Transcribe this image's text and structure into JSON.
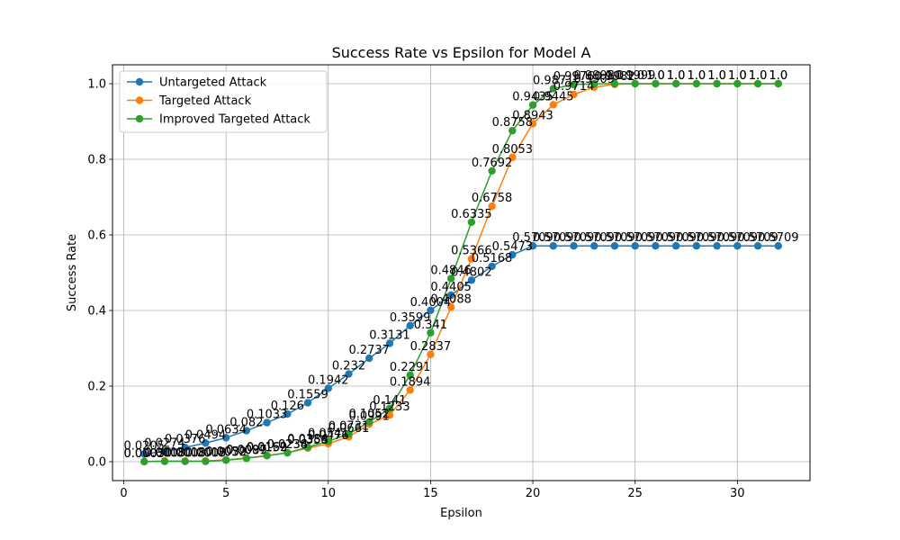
{
  "chart_data": {
    "type": "line",
    "title": "Success Rate vs Epsilon for Model A",
    "xlabel": "Epsilon",
    "ylabel": "Success Rate",
    "xlim": [
      -0.55,
      33.55
    ],
    "ylim": [
      -0.05,
      1.05
    ],
    "xticks": [
      0,
      5,
      10,
      15,
      20,
      25,
      30
    ],
    "yticks": [
      0.0,
      0.2,
      0.4,
      0.6,
      0.8,
      1.0
    ],
    "grid": true,
    "legend_position": "top-left",
    "x": [
      1,
      2,
      3,
      4,
      5,
      6,
      7,
      8,
      9,
      10,
      11,
      12,
      13,
      14,
      15,
      16,
      17,
      18,
      19,
      20,
      21,
      22,
      23,
      24,
      25,
      26,
      27,
      28,
      29,
      30,
      31,
      32
    ],
    "series": [
      {
        "name": "Untargeted Attack",
        "color": "#1f77b4",
        "values": [
          0.0205,
          0.0274,
          0.0376,
          0.0494,
          0.0634,
          0.082,
          0.1033,
          0.126,
          0.1559,
          0.1942,
          0.232,
          0.2737,
          0.3131,
          0.3599,
          0.4004,
          0.4405,
          0.4802,
          0.5168,
          0.5473,
          0.5709,
          0.5709,
          0.5709,
          0.5709,
          0.5709,
          0.5709,
          0.5709,
          0.5709,
          0.5709,
          0.5709,
          0.5709,
          0.5709,
          0.5709
        ],
        "labels": [
          "0.0205",
          "0.0274",
          "0.0376",
          "0.0494",
          "0.0634",
          "0.082",
          "0.1033",
          "0.126",
          "0.1559",
          "0.1942",
          "0.232",
          "0.2737",
          "0.3131",
          "0.3599",
          "0.4004",
          "0.4405",
          "0.4802",
          "0.5168",
          "0.5473",
          "0.5709",
          "0.5709",
          "0.5709",
          "0.5709",
          "0.5709",
          "0.5709",
          "0.5709",
          "0.5709",
          "0.5709",
          "0.5709",
          "0.5709",
          "0.5709",
          "0.5709"
        ]
      },
      {
        "name": "Targeted Attack",
        "color": "#ff7f0e",
        "values": [
          0.0005,
          0.0018,
          0.0018,
          0.0018,
          0.0052,
          0.0097,
          0.0162,
          0.0238,
          0.0358,
          0.0476,
          0.0661,
          0.0991,
          0.1233,
          0.1894,
          0.2837,
          0.4088,
          0.5366,
          0.6758,
          0.8053,
          0.8943,
          0.9445,
          0.9714,
          0.9909,
          0.9982,
          0.9999,
          1.0,
          1.0,
          1.0,
          1.0,
          1.0,
          1.0,
          1.0
        ],
        "labels": [
          "0.0005",
          "0.0018",
          "0.0018",
          "0.0018",
          "0.0052",
          "0.0097",
          "0.0162",
          "0.0238",
          "0.0358",
          "0.0476",
          "0.0661",
          "0.0991",
          "0.1233",
          "0.1894",
          "0.2837",
          "0.4088",
          "0.5366",
          "0.6758",
          "0.8053",
          "0.8943",
          "0.9445",
          "0.9714",
          "0.9909",
          "0.9982",
          "0.9999",
          "1.0",
          "1.0",
          "1.0",
          "1.0",
          "1.0",
          "1.0",
          "1.0"
        ]
      },
      {
        "name": "Improved Targeted Attack",
        "color": "#2ca02c",
        "values": [
          0.0003,
          0.0008,
          0.0008,
          0.0009,
          0.0039,
          0.0089,
          0.0159,
          0.0234,
          0.0384,
          0.0541,
          0.0731,
          0.1052,
          0.141,
          0.2291,
          0.341,
          0.4846,
          0.6335,
          0.7692,
          0.8758,
          0.9435,
          0.9871,
          0.9976,
          0.9998,
          1.0,
          1.0,
          1.0,
          1.0,
          1.0,
          1.0,
          1.0,
          1.0,
          1.0
        ],
        "labels": [
          "0.0003",
          "0.0008",
          "0.0008",
          "0.0009",
          "0.0039",
          "0.0089",
          "0.0159",
          "0.0234",
          "0.0384",
          "0.0541",
          "0.0731",
          "0.1052",
          "0.141",
          "0.2291",
          "0.341",
          "0.4846",
          "0.6335",
          "0.7692",
          "0.8758",
          "0.9435",
          "0.9871",
          "0.9976",
          "0.9998",
          "1.0",
          "1.0",
          "1.0",
          "1.0",
          "1.0",
          "1.0",
          "1.0",
          "1.0",
          "1.0"
        ]
      }
    ]
  }
}
